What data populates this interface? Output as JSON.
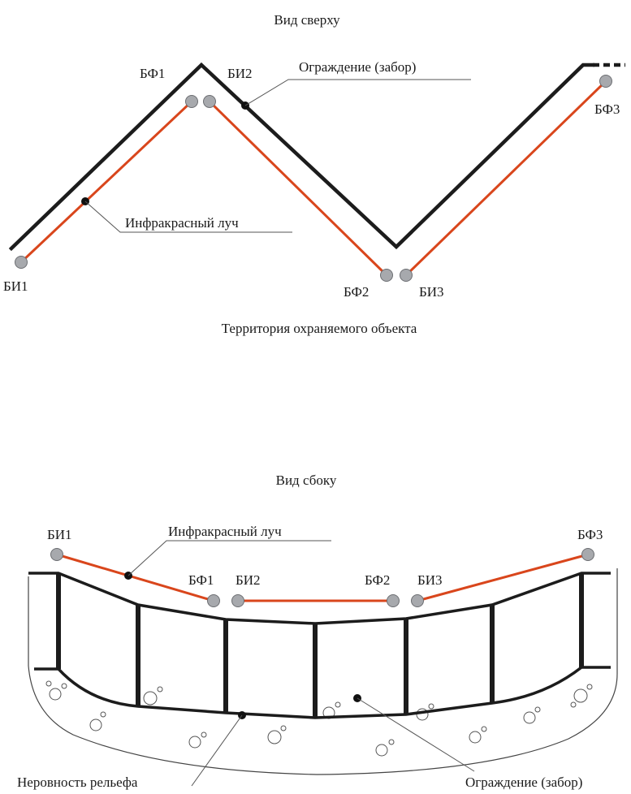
{
  "top_view": {
    "title": "Вид сверху",
    "labels": {
      "bf1": "БФ1",
      "bi2": "БИ2",
      "bf3": "БФ3",
      "bi1": "БИ1",
      "bf2": "БФ2",
      "bi3": "БИ3",
      "fence": "Ограждение (забор)",
      "beam": "Инфракрасный луч"
    },
    "footer": "Территория охраняемого объекта"
  },
  "side_view": {
    "title": "Вид сбоку",
    "labels": {
      "bi1": "БИ1",
      "beam": "Инфракрасный луч",
      "bf3": "БФ3",
      "bf1": "БФ1",
      "bi2": "БИ2",
      "bf2": "БФ2",
      "bi3": "БИ3",
      "terrain": "Неровность рельефа",
      "fence": "Ограждение (забор)"
    }
  },
  "colors": {
    "beam": "#d9461c",
    "fence": "#1c1c1c",
    "device": "#a7a9ad"
  }
}
